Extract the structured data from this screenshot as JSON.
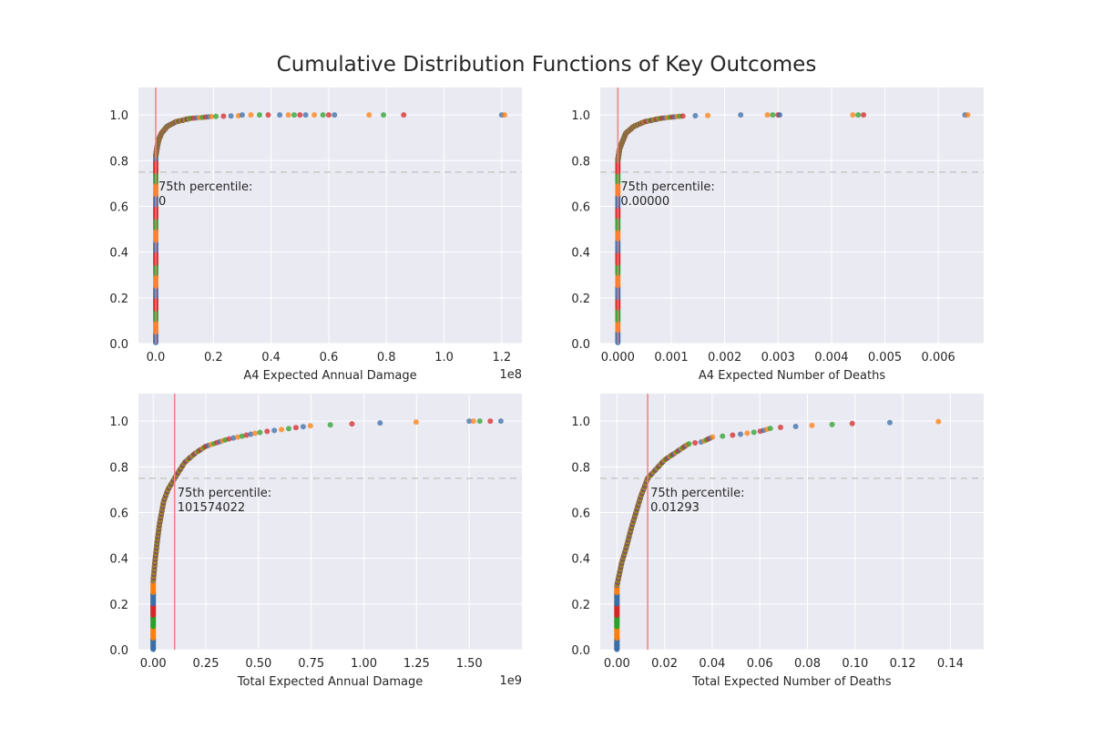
{
  "suptitle": "Cumulative Distribution Functions of Key Outcomes",
  "colors": {
    "axes_bg": "#eaeaf2",
    "grid": "#ffffff",
    "text": "#262626",
    "threshold_line": "#f08080",
    "percentile_line": "#c8c8c8",
    "series_palette": [
      "#3a6ea8",
      "#ff7f0e",
      "#2ca02c",
      "#d62728"
    ]
  },
  "chart_data": [
    {
      "type": "scatter",
      "title": "",
      "xlabel": "A4 Expected Annual Damage",
      "x_scale_label": "1e8",
      "ylabel": "",
      "xlim": [
        -0.06,
        1.27
      ],
      "ylim": [
        0,
        1.12
      ],
      "x_ticks": [
        0.0,
        0.2,
        0.4,
        0.6,
        0.8,
        1.0,
        1.2
      ],
      "x_tick_labels": [
        "0.0",
        "0.2",
        "0.4",
        "0.6",
        "0.8",
        "1.0",
        "1.2"
      ],
      "y_ticks": [
        0.0,
        0.2,
        0.4,
        0.6,
        0.8,
        1.0
      ],
      "y_tick_labels": [
        "0.0",
        "0.2",
        "0.4",
        "0.6",
        "0.8",
        "1.0"
      ],
      "grid": true,
      "percentile_y": 0.75,
      "vline_x": 0.0,
      "annotation": [
        "75th percentile:",
        "0"
      ],
      "zero_fraction": 0.82,
      "curve": [
        [
          0.0,
          0.82
        ],
        [
          0.005,
          0.86
        ],
        [
          0.01,
          0.89
        ],
        [
          0.02,
          0.92
        ],
        [
          0.04,
          0.95
        ],
        [
          0.07,
          0.97
        ],
        [
          0.12,
          0.985
        ],
        [
          0.2,
          0.993
        ],
        [
          0.3,
          0.997
        ]
      ],
      "outliers": [
        0.3,
        0.33,
        0.36,
        0.39,
        0.43,
        0.46,
        0.48,
        0.5,
        0.52,
        0.55,
        0.58,
        0.6,
        0.62,
        0.74,
        0.79,
        0.86,
        1.2,
        1.21
      ]
    },
    {
      "type": "scatter",
      "title": "",
      "xlabel": "A4 Expected Number of Deaths",
      "x_scale_label": "",
      "ylabel": "",
      "xlim": [
        -0.00033,
        0.00685
      ],
      "ylim": [
        0,
        1.12
      ],
      "x_ticks": [
        0.0,
        0.001,
        0.002,
        0.003,
        0.004,
        0.005,
        0.006
      ],
      "x_tick_labels": [
        "0.000",
        "0.001",
        "0.002",
        "0.003",
        "0.004",
        "0.005",
        "0.006"
      ],
      "y_ticks": [
        0.0,
        0.2,
        0.4,
        0.6,
        0.8,
        1.0
      ],
      "y_tick_labels": [
        "0.0",
        "0.2",
        "0.4",
        "0.6",
        "0.8",
        "1.0"
      ],
      "grid": true,
      "percentile_y": 0.75,
      "vline_x": 0.0,
      "annotation": [
        "75th percentile:",
        "0.00000"
      ],
      "zero_fraction": 0.8,
      "curve": [
        [
          0.0,
          0.8
        ],
        [
          3e-05,
          0.85
        ],
        [
          8e-05,
          0.88
        ],
        [
          0.00015,
          0.92
        ],
        [
          0.0003,
          0.95
        ],
        [
          0.0005,
          0.97
        ],
        [
          0.0008,
          0.985
        ],
        [
          0.0012,
          0.995
        ],
        [
          0.0018,
          0.998
        ]
      ],
      "outliers": [
        0.0023,
        0.0028,
        0.0029,
        0.003,
        0.00303,
        0.0044,
        0.0045,
        0.0046,
        0.0065,
        0.00655
      ]
    },
    {
      "type": "scatter",
      "title": "",
      "xlabel": "Total Expected Annual Damage",
      "x_scale_label": "1e9",
      "ylabel": "",
      "xlim": [
        -0.07,
        1.75
      ],
      "ylim": [
        0,
        1.12
      ],
      "x_ticks": [
        0.0,
        0.25,
        0.5,
        0.75,
        1.0,
        1.25,
        1.5
      ],
      "x_tick_labels": [
        "0.00",
        "0.25",
        "0.50",
        "0.75",
        "1.00",
        "1.25",
        "1.50"
      ],
      "y_ticks": [
        0.0,
        0.2,
        0.4,
        0.6,
        0.8,
        1.0
      ],
      "y_tick_labels": [
        "0.0",
        "0.2",
        "0.4",
        "0.6",
        "0.8",
        "1.0"
      ],
      "grid": true,
      "percentile_y": 0.75,
      "vline_x": 0.1016,
      "annotation": [
        "75th percentile:",
        "101574022"
      ],
      "zero_fraction": 0.3,
      "curve": [
        [
          0.0,
          0.3
        ],
        [
          0.01,
          0.4
        ],
        [
          0.02,
          0.48
        ],
        [
          0.03,
          0.55
        ],
        [
          0.05,
          0.65
        ],
        [
          0.07,
          0.7
        ],
        [
          0.1016,
          0.75
        ],
        [
          0.15,
          0.82
        ],
        [
          0.2,
          0.86
        ],
        [
          0.25,
          0.89
        ],
        [
          0.35,
          0.92
        ],
        [
          0.5,
          0.95
        ],
        [
          0.75,
          0.98
        ],
        [
          1.0,
          0.99
        ],
        [
          1.25,
          0.996
        ],
        [
          1.45,
          0.998
        ]
      ],
      "outliers": [
        1.5,
        1.52,
        1.55,
        1.6,
        1.65
      ]
    },
    {
      "type": "scatter",
      "title": "",
      "xlabel": "Total Expected Number of Deaths",
      "x_scale_label": "",
      "ylabel": "",
      "xlim": [
        -0.007,
        0.154
      ],
      "ylim": [
        0,
        1.12
      ],
      "x_ticks": [
        0.0,
        0.02,
        0.04,
        0.06,
        0.08,
        0.1,
        0.12,
        0.14
      ],
      "x_tick_labels": [
        "0.00",
        "0.02",
        "0.04",
        "0.06",
        "0.08",
        "0.10",
        "0.12",
        "0.14"
      ],
      "y_ticks": [
        0.0,
        0.2,
        0.4,
        0.6,
        0.8,
        1.0
      ],
      "y_tick_labels": [
        "0.0",
        "0.2",
        "0.4",
        "0.6",
        "0.8",
        "1.0"
      ],
      "grid": true,
      "percentile_y": 0.75,
      "vline_x": 0.01293,
      "annotation": [
        "75th percentile:",
        "0.01293"
      ],
      "zero_fraction": 0.28,
      "curve": [
        [
          0.0,
          0.28
        ],
        [
          0.002,
          0.38
        ],
        [
          0.004,
          0.45
        ],
        [
          0.006,
          0.53
        ],
        [
          0.008,
          0.6
        ],
        [
          0.01,
          0.67
        ],
        [
          0.01293,
          0.75
        ],
        [
          0.02,
          0.83
        ],
        [
          0.03,
          0.9
        ],
        [
          0.036,
          0.91
        ],
        [
          0.04,
          0.93
        ],
        [
          0.05,
          0.94
        ],
        [
          0.06,
          0.955
        ],
        [
          0.065,
          0.97
        ],
        [
          0.08,
          0.98
        ],
        [
          0.1,
          0.99
        ],
        [
          0.12,
          0.995
        ],
        [
          0.146,
          1.0
        ]
      ],
      "outliers": []
    }
  ]
}
